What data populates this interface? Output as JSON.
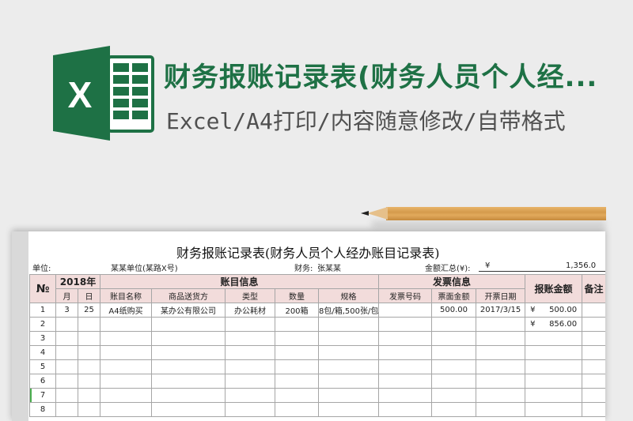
{
  "hero": {
    "title": "财务报账记录表(财务人员个人经...",
    "subtitle": "Excel/A4打印/内容随意修改/自带格式",
    "logo_letter": "X",
    "colors": {
      "brand_green": "#1e7145",
      "header_pink": "#f2dcdb"
    }
  },
  "sheet": {
    "title": "财务报账记录表(财务人员个人经办账目记录表)",
    "unit_label": "单位:",
    "unit_value": "某某单位(某路X号)",
    "finance_label": "财务:",
    "finance_value": "张某某",
    "total_label": "金额汇总(¥):",
    "total_currency": "¥",
    "total_value": "1,356.0",
    "headers": {
      "no": "№",
      "year": "2018年",
      "account_info": "账目信息",
      "invoice_info": "发票信息",
      "reimburse_amount": "报账金额",
      "remark": "备注",
      "month": "月",
      "day": "日",
      "account_name": "账目名称",
      "supplier": "商品送货方",
      "type": "类型",
      "quantity": "数量",
      "spec": "规格",
      "invoice_no": "发票号码",
      "face_amount": "票面金额",
      "invoice_date": "开票日期"
    },
    "rows": [
      {
        "no": "1",
        "month": "3",
        "day": "25",
        "account_name": "A4纸购买",
        "supplier": "某办公有限公司",
        "type": "办公耗材",
        "quantity": "200箱",
        "spec": "8包/箱,500张/包",
        "invoice_no": "",
        "face_amount": "500.00",
        "invoice_date": "2017/3/15",
        "currency": "¥",
        "amount": "500.00"
      },
      {
        "no": "2",
        "currency": "¥",
        "amount": "856.00"
      },
      {
        "no": "3"
      },
      {
        "no": "4"
      },
      {
        "no": "5"
      },
      {
        "no": "6"
      },
      {
        "no": "7"
      },
      {
        "no": "8"
      }
    ]
  }
}
